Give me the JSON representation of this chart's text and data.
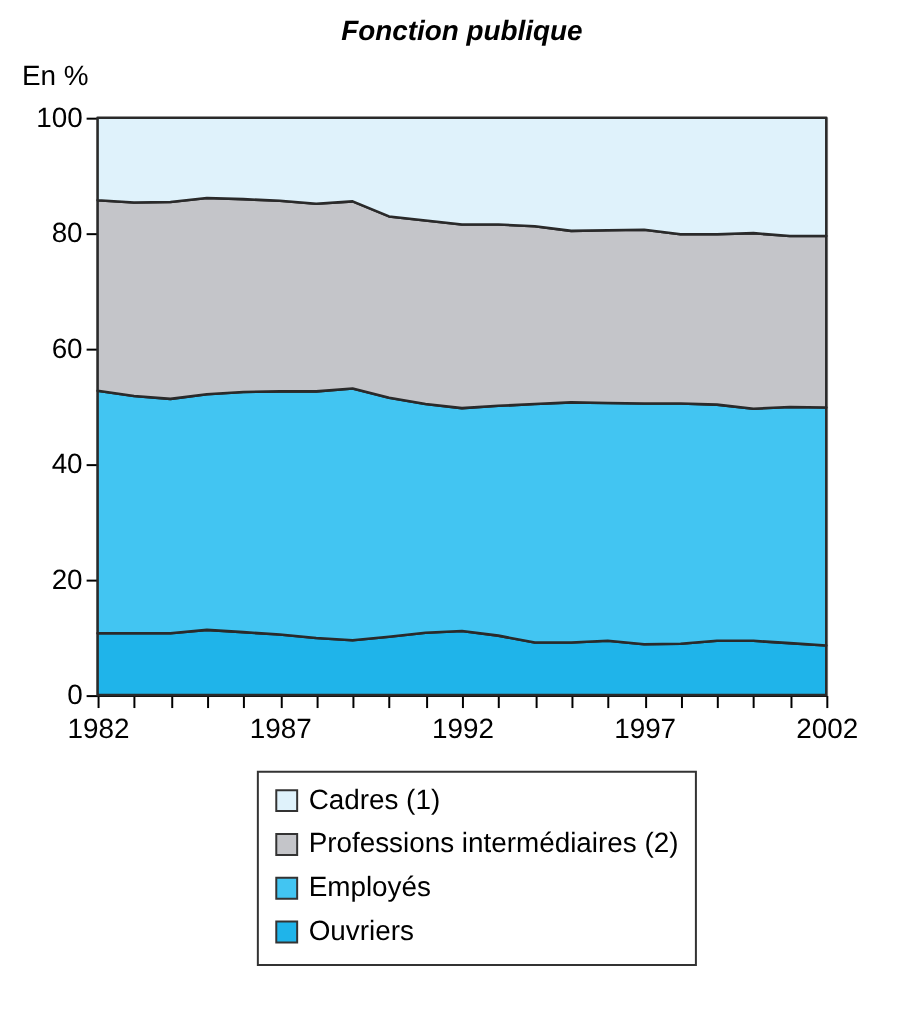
{
  "chart_data": {
    "type": "area",
    "title": "Fonction publique",
    "ylabel": "En %",
    "stacked": true,
    "x": [
      1982,
      1983,
      1984,
      1985,
      1986,
      1987,
      1988,
      1989,
      1990,
      1991,
      1992,
      1993,
      1994,
      1995,
      1996,
      1997,
      1998,
      1999,
      2000,
      2001,
      2002
    ],
    "series": [
      {
        "name": "Ouvriers",
        "color": "#1fb4ea",
        "values": [
          10.7,
          10.7,
          10.7,
          11.3,
          10.9,
          10.5,
          9.9,
          9.5,
          10.1,
          10.8,
          11.1,
          10.3,
          9.1,
          9.1,
          9.4,
          8.8,
          8.9,
          9.4,
          9.4,
          9.0,
          8.6
        ]
      },
      {
        "name": "Employés",
        "color": "#42c5f2",
        "values": [
          42.0,
          41.1,
          40.6,
          40.8,
          41.6,
          42.1,
          42.7,
          43.6,
          41.4,
          39.6,
          38.6,
          39.8,
          41.3,
          41.6,
          41.2,
          41.7,
          41.6,
          40.9,
          40.2,
          40.9,
          41.2
        ]
      },
      {
        "name": "Professions intermédiaires (2)",
        "color": "#c4c5c9",
        "values": [
          33.0,
          33.5,
          34.1,
          34.0,
          33.4,
          33.0,
          32.5,
          32.4,
          31.4,
          31.8,
          31.8,
          31.4,
          30.8,
          29.7,
          29.9,
          30.1,
          29.3,
          29.5,
          30.4,
          29.6,
          29.7
        ]
      },
      {
        "name": "Cadres (1)",
        "color": "#dff2fb",
        "values": [
          14.3,
          14.7,
          14.6,
          13.9,
          14.1,
          14.4,
          14.9,
          14.5,
          17.1,
          17.8,
          18.5,
          18.5,
          18.8,
          19.6,
          19.5,
          19.4,
          20.2,
          20.2,
          20.0,
          20.5,
          20.5
        ]
      }
    ],
    "xlim": [
      1982,
      2002
    ],
    "xticks": [
      1982,
      {
        "value": 1983,
        "label": null
      },
      {
        "value": 1984,
        "label": null
      },
      {
        "value": 1985,
        "label": null
      },
      {
        "value": 1986,
        "label": null
      },
      1987,
      {
        "value": 1988,
        "label": null
      },
      {
        "value": 1989,
        "label": null
      },
      {
        "value": 1990,
        "label": null
      },
      {
        "value": 1991,
        "label": null
      },
      1992,
      {
        "value": 1993,
        "label": null
      },
      {
        "value": 1994,
        "label": null
      },
      {
        "value": 1995,
        "label": null
      },
      {
        "value": 1996,
        "label": null
      },
      1997,
      {
        "value": 1998,
        "label": null
      },
      {
        "value": 1999,
        "label": null
      },
      {
        "value": 2000,
        "label": null
      },
      {
        "value": 2001,
        "label": null
      },
      2002
    ],
    "ylim": [
      0,
      100
    ],
    "yticks": [
      0,
      20,
      40,
      60,
      80,
      100
    ],
    "legend": "bottom"
  }
}
